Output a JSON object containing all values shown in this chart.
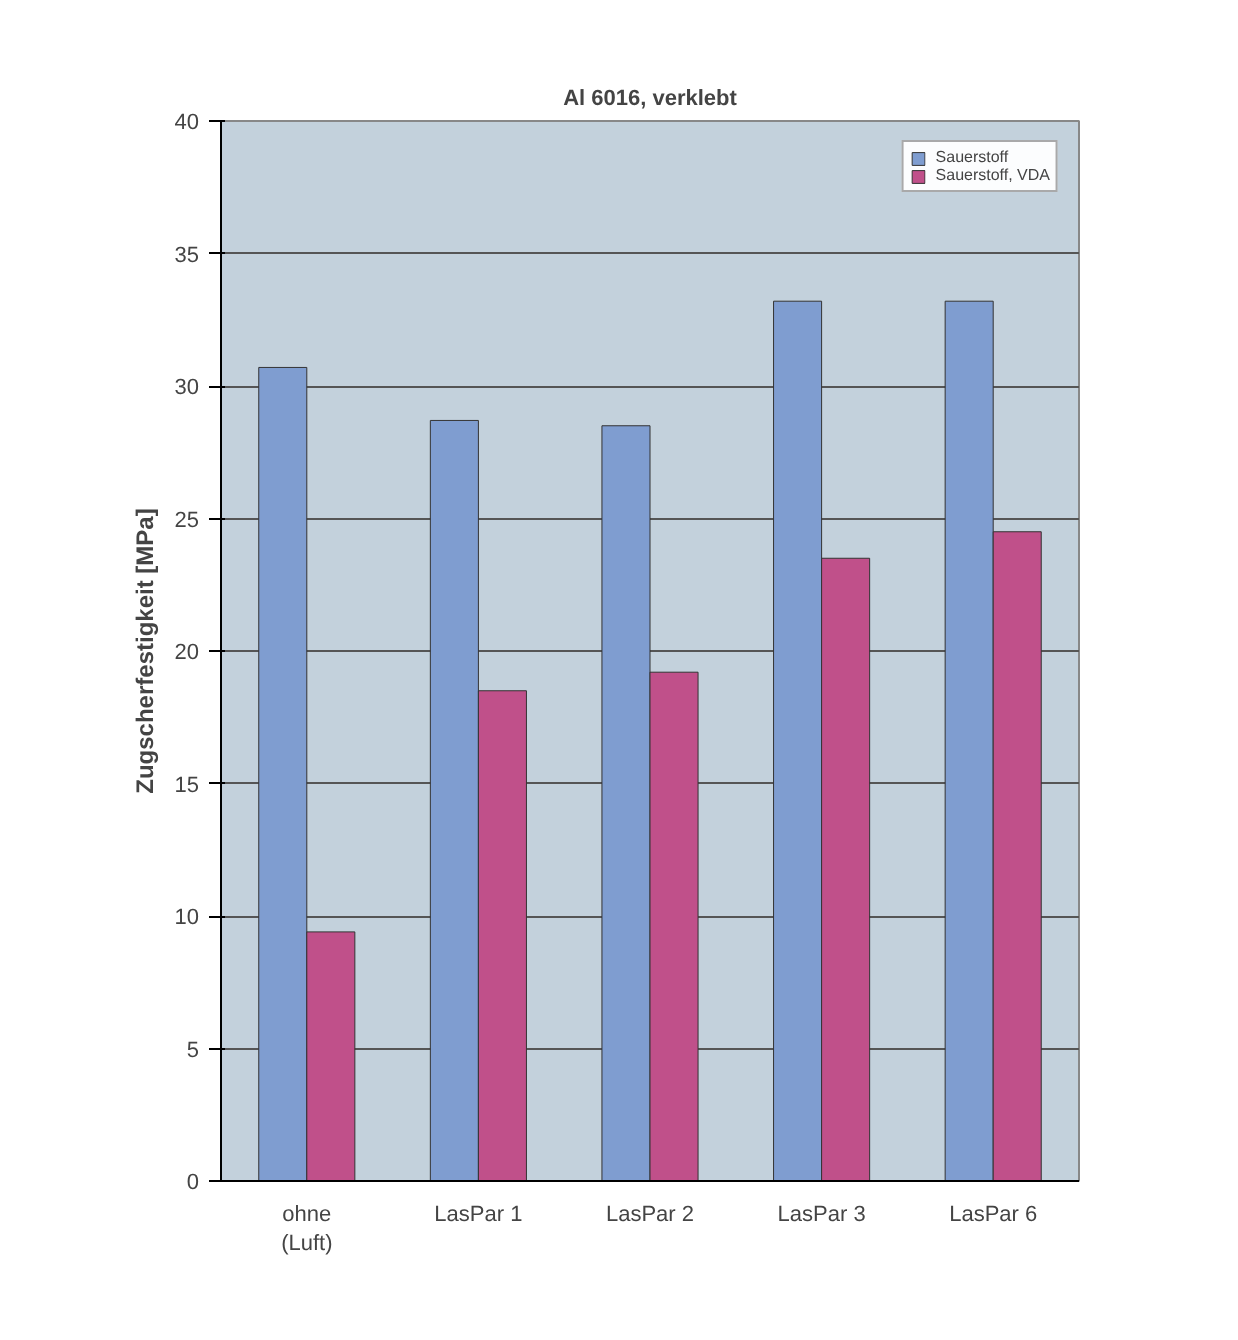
{
  "chart_data": {
    "type": "bar",
    "title": "Al 6016, verklebt",
    "ylabel": "Zugscherfestigkeit [MPa]",
    "categories": [
      "ohne\n(Luft)",
      "LasPar 1",
      "LasPar 2",
      "LasPar 3",
      "LasPar 6"
    ],
    "series": [
      {
        "name": "Sauerstoff",
        "color": "#7f9dd0",
        "values": [
          30.7,
          28.7,
          28.5,
          33.2,
          33.2
        ]
      },
      {
        "name": "Sauerstoff, VDA",
        "color": "#c0508a",
        "values": [
          9.4,
          18.5,
          19.2,
          23.5,
          24.5
        ]
      }
    ],
    "ylim": [
      0,
      40
    ],
    "yticks": [
      0,
      5,
      10,
      15,
      20,
      25,
      30,
      35,
      40
    ],
    "grid": "y",
    "legend": "top right"
  }
}
